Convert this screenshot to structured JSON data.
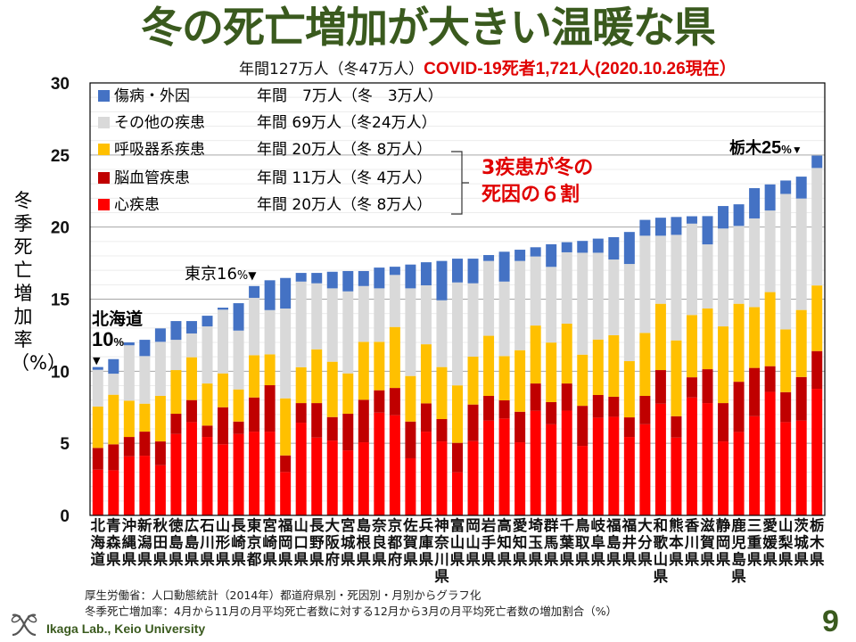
{
  "title": "冬の死亡増加が大きい温暖な県",
  "summary": {
    "total": "年間127万人（冬47万人）",
    "covid": "COVID-19死者1,721人(2020.10.26現在）"
  },
  "legend": [
    {
      "name": "傷病・外因",
      "stat": "年間　7万人（冬　3万人）",
      "color": "#4472c4"
    },
    {
      "name": "その他の疾患",
      "stat": "年間 69万人（冬24万人）",
      "color": "#d9d9d9"
    },
    {
      "name": "呼吸器系疾患",
      "stat": "年間 20万人（冬 8万人）",
      "color": "#ffc000"
    },
    {
      "name": "脳血管疾患",
      "stat": "年間 11万人（冬 4万人）",
      "color": "#c00000"
    },
    {
      "name": "心疾患",
      "stat": "年間 20万人（冬 8万人）",
      "color": "#ff0000"
    }
  ],
  "callout": {
    "line1": "3疾患が冬の",
    "line2": "死因の６割"
  },
  "annotations": {
    "hokkaido_name": "北海道",
    "hokkaido_value": "10",
    "tokyo_name": "東京",
    "tokyo_value": "16",
    "tochigi_name": "栃木",
    "tochigi_value": "25",
    "percent": "%",
    "marker": "▼"
  },
  "footnotes": {
    "source": "厚生労働省：人口動態統計（2014年）都道府県別・死因別・月別からグラフ化",
    "definition": "冬季死亡増加率：4月から11月の月平均死亡者数に対する12月から3月の月平均死亡者数の増加割合（%）"
  },
  "footer": {
    "lab": "Ikaga Lab., Keio University",
    "page": "9"
  },
  "chart_data": {
    "type": "bar",
    "stacked": true,
    "title": "冬の死亡増加が大きい温暖な県",
    "xlabel": "",
    "ylabel": "冬季死亡増加率（%）",
    "ylim": [
      0,
      30
    ],
    "yticks": [
      0,
      5,
      10,
      15,
      20,
      25,
      30
    ],
    "grid": true,
    "legend_position": "top-left",
    "categories": [
      "北海道",
      "青森県",
      "沖縄県",
      "新潟県",
      "秋田県",
      "徳島県",
      "広島県",
      "石川県",
      "山形県",
      "長崎県",
      "東京都",
      "宮崎県",
      "福岡県",
      "山口県",
      "長野県",
      "大阪府",
      "宮城県",
      "島根県",
      "奈良県",
      "京都府",
      "佐賀県",
      "兵庫県",
      "神奈川県",
      "富山県",
      "岡山県",
      "岩手県",
      "高知県",
      "愛知県",
      "埼玉県",
      "群馬県",
      "千葉県",
      "鳥取県",
      "岐阜県",
      "福島県",
      "福井県",
      "大分県",
      "和歌山県",
      "熊本県",
      "香川県",
      "滋賀県",
      "静岡県",
      "鹿児島県",
      "三重県",
      "愛媛県",
      "山梨県",
      "茨城県",
      "栃木県"
    ],
    "series": [
      {
        "name": "心疾患",
        "color": "#ff0000",
        "values": [
          3.17,
          3.13,
          4.1,
          4.14,
          3.48,
          5.65,
          6.47,
          5.44,
          4.93,
          5.65,
          5.81,
          5.81,
          3.01,
          6.43,
          5.4,
          5.19,
          4.51,
          5.07,
          7.13,
          6.95,
          3.96,
          5.81,
          5.13,
          2.99,
          5.15,
          6.58,
          6.72,
          5.07,
          7.26,
          6.32,
          7.27,
          4.82,
          6.78,
          6.84,
          5.44,
          6.32,
          7.75,
          5.4,
          8.18,
          7.79,
          5.13,
          5.79,
          6.88,
          8.57,
          6.47,
          6.58,
          8.78
        ]
      },
      {
        "name": "脳血管疾患",
        "color": "#c00000",
        "values": [
          1.51,
          1.8,
          1.34,
          1.67,
          1.65,
          1.4,
          1.53,
          0.79,
          2.57,
          0.86,
          2.37,
          3.22,
          1.15,
          1.36,
          2.39,
          1.63,
          2.54,
          2.95,
          1.55,
          1.89,
          2.55,
          1.96,
          1.55,
          2.04,
          2.54,
          1.71,
          1.26,
          2.12,
          1.89,
          1.54,
          1.88,
          2.78,
          1.57,
          1.39,
          1.36,
          1.97,
          2.33,
          1.48,
          1.4,
          2.35,
          2.66,
          3.48,
          3.35,
          1.78,
          2.08,
          3.02,
          2.62
        ]
      },
      {
        "name": "呼吸器系疾患",
        "color": "#ffc000",
        "values": [
          2.87,
          3.44,
          2.52,
          1.94,
          3.16,
          3.03,
          2.97,
          2.92,
          2.35,
          2.23,
          2.93,
          2.14,
          3.96,
          2.49,
          3.73,
          3.84,
          2.8,
          4.02,
          3.36,
          4.23,
          3.16,
          4.1,
          3.61,
          3.99,
          3.32,
          4.17,
          3.07,
          4.27,
          4.02,
          4.13,
          4.15,
          3.55,
          3.85,
          4.27,
          3.9,
          4.37,
          4.6,
          5.26,
          4.32,
          4.21,
          5.32,
          5.41,
          4.22,
          5.14,
          4.35,
          4.65,
          4.55
        ]
      },
      {
        "name": "その他の疾患",
        "color": "#d9d9d9",
        "values": [
          2.55,
          1.46,
          3.84,
          3.3,
          3.75,
          2.1,
          1.65,
          3.96,
          4.42,
          4.08,
          3.98,
          3.07,
          6.23,
          5.94,
          4.58,
          5.09,
          5.69,
          3.87,
          3.71,
          3.61,
          6.08,
          4.09,
          4.63,
          7.14,
          5.09,
          5.19,
          5.17,
          6.19,
          4.79,
          5.25,
          4.95,
          7.07,
          6.02,
          5.25,
          6.74,
          6.74,
          4.72,
          7.32,
          6.34,
          4.45,
          6.79,
          5.4,
          6.15,
          5.66,
          9.4,
          7.73,
          8.15
        ]
      },
      {
        "name": "傷病・外因",
        "color": "#4472c4",
        "values": [
          0.19,
          1.01,
          0.2,
          1.13,
          0.93,
          1.3,
          0.86,
          0.74,
          0.14,
          1.9,
          0.82,
          2.07,
          2.12,
          0.6,
          0.72,
          1.15,
          1.41,
          1.04,
          1.44,
          0.57,
          1.65,
          1.6,
          2.73,
          1.65,
          1.71,
          0.41,
          2.07,
          0.78,
          0.64,
          1.57,
          0.7,
          0.82,
          0.98,
          1.55,
          2.22,
          1.1,
          1.25,
          1.24,
          0.51,
          1.96,
          1.56,
          1.5,
          2.1,
          1.81,
          0.93,
          1.52,
          0.86
        ]
      }
    ]
  }
}
